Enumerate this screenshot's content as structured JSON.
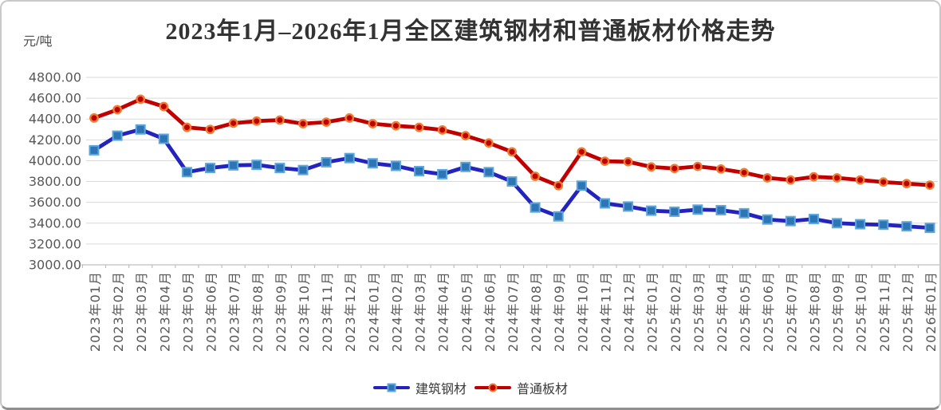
{
  "chart_data": {
    "type": "line",
    "title": "2023年1月–2026年1月全区建筑钢材和普通板材价格走势",
    "unit": "元/吨",
    "xlabel": "",
    "ylabel": "元/吨",
    "ylim": [
      3000,
      4800
    ],
    "ytick_step": 200,
    "ytick_format_decimals": 2,
    "grid": true,
    "legend_position": "bottom",
    "categories": [
      "2023年01月",
      "2023年02月",
      "2023年03月",
      "2023年04月",
      "2023年05月",
      "2023年06月",
      "2023年07月",
      "2023年08月",
      "2023年09月",
      "2023年10月",
      "2023年11月",
      "2023年12月",
      "2024年01月",
      "2024年02月",
      "2024年03月",
      "2024年04月",
      "2024年05月",
      "2024年06月",
      "2024年07月",
      "2024年08月",
      "2024年09月",
      "2024年10月",
      "2024年11月",
      "2024年12月",
      "2025年01月",
      "2025年02月",
      "2025年03月",
      "2025年04月",
      "2025年05月",
      "2025年06月",
      "2025年07月",
      "2025年08月",
      "2025年09月",
      "2025年10月",
      "2025年11月",
      "2025年12月",
      "2026年01月"
    ],
    "series": [
      {
        "key": "steel",
        "name": "建筑钢材",
        "marker": "square",
        "color": "#2323BE",
        "marker_fill": "#2E75B6",
        "marker_stroke": "#5CA7DC",
        "values": [
          4100,
          4240,
          4300,
          4210,
          3890,
          3930,
          3955,
          3960,
          3930,
          3910,
          3985,
          4025,
          3975,
          3950,
          3900,
          3870,
          3940,
          3890,
          3800,
          3550,
          3465,
          3760,
          3590,
          3560,
          3520,
          3510,
          3530,
          3525,
          3495,
          3435,
          3420,
          3440,
          3400,
          3390,
          3385,
          3370,
          3355
        ]
      },
      {
        "key": "plate",
        "name": "普通板材",
        "marker": "circle",
        "color": "#C00000",
        "marker_fill": "#C00000",
        "marker_stroke": "#ED7D31",
        "values": [
          4410,
          4490,
          4590,
          4520,
          4320,
          4300,
          4360,
          4380,
          4390,
          4355,
          4370,
          4410,
          4355,
          4335,
          4320,
          4295,
          4240,
          4170,
          4085,
          3850,
          3760,
          4085,
          3995,
          3990,
          3940,
          3925,
          3945,
          3920,
          3885,
          3835,
          3815,
          3845,
          3835,
          3815,
          3795,
          3780,
          3765
        ]
      }
    ],
    "axis_text_color": "#595959",
    "gridline_color": "#D9D9D9",
    "axis_line_color": "#BFBFBF"
  }
}
